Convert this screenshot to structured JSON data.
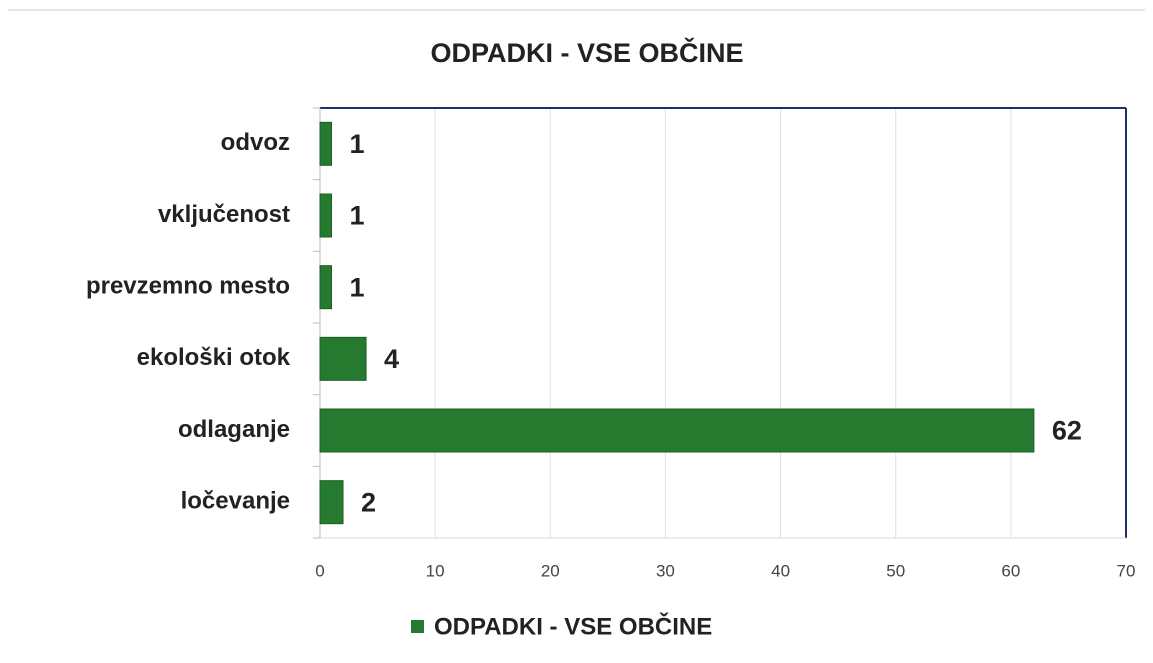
{
  "chart_data": {
    "type": "bar",
    "orientation": "horizontal",
    "title": "ODPADKI - VSE OBČINE",
    "categories": [
      "odvoz",
      "vključenost",
      "prevzemno mesto",
      "ekološki otok",
      "odlaganje",
      "ločevanje"
    ],
    "series": [
      {
        "name": "ODPADKI - VSE OBČINE",
        "color": "#267a30",
        "values": [
          1,
          1,
          1,
          4,
          62,
          2
        ]
      }
    ],
    "xlim": [
      0,
      70
    ],
    "xticks": [
      0,
      10,
      20,
      30,
      40,
      50,
      60,
      70
    ],
    "grid": true,
    "legend": "bottom"
  }
}
